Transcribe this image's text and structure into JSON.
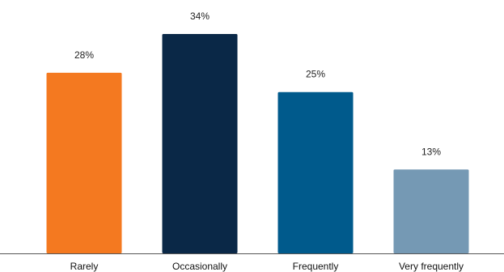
{
  "chart_data": {
    "type": "bar",
    "title": "",
    "xlabel": "",
    "ylabel": "",
    "categories": [
      "Rarely",
      "Occasionally",
      "Frequently",
      "Very frequently"
    ],
    "values": [
      28,
      34,
      25,
      13
    ],
    "value_labels": [
      "28%",
      "34%",
      "25%",
      "13%"
    ],
    "unit": "%",
    "ylim": [
      0,
      34
    ],
    "grid": false,
    "legend": "none",
    "colors": [
      "#F47920",
      "#0A2847",
      "#005A8C",
      "#7599B4"
    ]
  }
}
